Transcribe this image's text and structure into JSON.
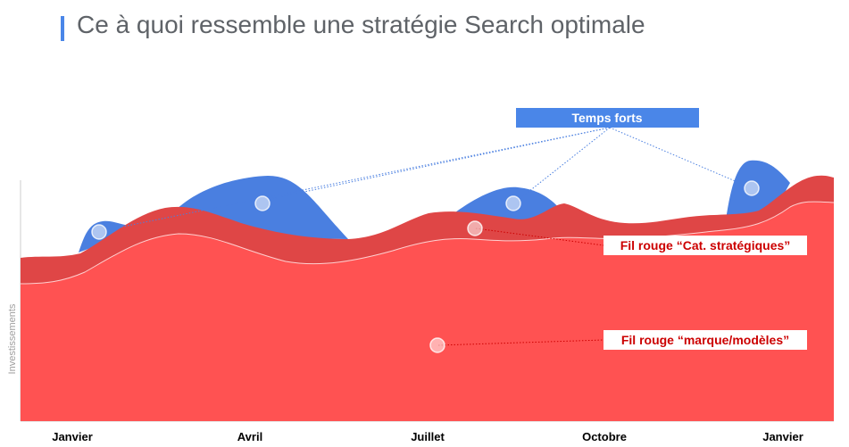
{
  "header": {
    "title": "Ce à quoi ressemble une stratégie Search optimale"
  },
  "colors": {
    "accent_bar": "#4a86e8",
    "blue_area": "#4a7fe0",
    "dark_red_area": "#df4646",
    "red_area": "#ff5252",
    "label_red": "#cc0000"
  },
  "chart_data": {
    "type": "area",
    "title": "Ce à quoi ressemble une stratégie Search optimale",
    "ylabel": "Investissements",
    "xlabel": "",
    "x_ticks": [
      "Janvier",
      "Avril",
      "Juillet",
      "Octobre",
      "Janvier"
    ],
    "series": [
      {
        "name": "Fil rouge “marque/modèles”",
        "color": "#ff5252"
      },
      {
        "name": "Fil rouge “Cat. stratégiques”",
        "color": "#df4646"
      },
      {
        "name": "Temps forts",
        "color": "#4a7fe0"
      }
    ],
    "annotations": [
      "Temps forts",
      "Fil rouge “Cat. stratégiques”",
      "Fil rouge “marque/modèles”"
    ],
    "legend": "callouts on the right"
  }
}
